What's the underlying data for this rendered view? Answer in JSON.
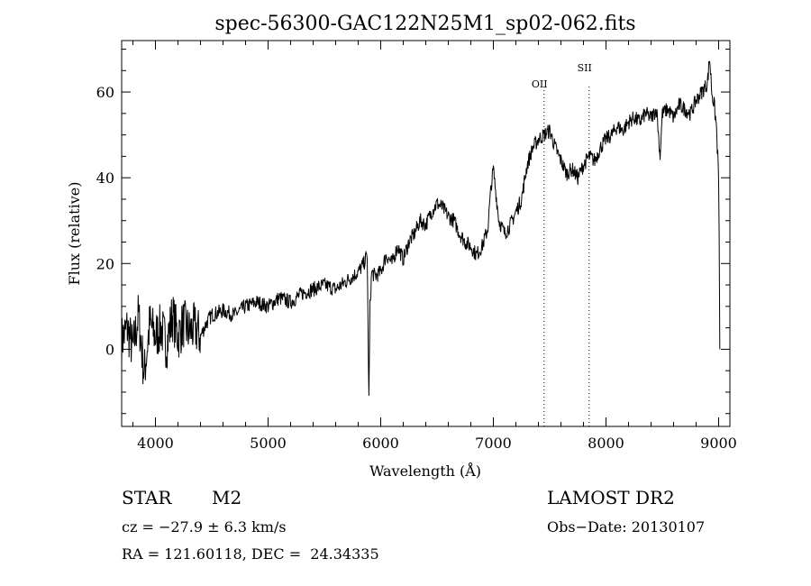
{
  "chart_data": {
    "type": "line",
    "title": "spec-56300-GAC122N25M1_sp02-062.fits",
    "xlabel": "Wavelength (Å)",
    "ylabel": "Flux (relative)",
    "xlim": [
      3700,
      9100
    ],
    "ylim": [
      -18,
      72
    ],
    "x_ticks": [
      4000,
      5000,
      6000,
      7000,
      8000,
      9000
    ],
    "y_ticks": [
      0,
      20,
      40,
      60
    ],
    "grid": false,
    "series": [
      {
        "x": [
          3700,
          3750,
          3800,
          3850,
          3900,
          3950,
          4000,
          4050,
          4100,
          4150,
          4200,
          4250,
          4300,
          4350,
          4400,
          4450,
          4500,
          4600,
          4700,
          4800,
          4900,
          5000,
          5100,
          5200,
          5300,
          5400,
          5500,
          5600,
          5700,
          5800,
          5850,
          5880,
          5895,
          5905,
          5920,
          5950,
          6000,
          6050,
          6100,
          6150,
          6200,
          6250,
          6300,
          6350,
          6400,
          6450,
          6500,
          6550,
          6600,
          6650,
          6700,
          6750,
          6800,
          6850,
          6900,
          6950,
          6980,
          7000,
          7020,
          7050,
          7100,
          7150,
          7200,
          7250,
          7300,
          7350,
          7400,
          7450,
          7500,
          7550,
          7600,
          7650,
          7700,
          7750,
          7800,
          7850,
          7900,
          7950,
          8000,
          8050,
          8100,
          8150,
          8200,
          8250,
          8300,
          8350,
          8400,
          8450,
          8480,
          8500,
          8550,
          8600,
          8650,
          8700,
          8750,
          8800,
          8850,
          8900,
          8920,
          8940,
          8960,
          8980,
          9000,
          9005,
          9010
        ],
        "y": [
          2,
          5,
          0,
          8,
          -6,
          6,
          3,
          5,
          1,
          8,
          3,
          6,
          4,
          5,
          3,
          6,
          8,
          9,
          8,
          10,
          11,
          10,
          12,
          11,
          13,
          14,
          15,
          14,
          16,
          18,
          20,
          22,
          -12,
          10,
          18,
          17,
          18,
          22,
          20,
          24,
          21,
          25,
          27,
          30,
          29,
          32,
          34,
          33,
          31,
          30,
          27,
          25,
          24,
          22,
          24,
          28,
          38,
          42,
          37,
          30,
          27,
          29,
          32,
          35,
          43,
          47,
          49,
          50,
          51,
          47,
          44,
          41,
          42,
          40,
          43,
          45,
          44,
          47,
          49,
          50,
          52,
          51,
          53,
          54,
          53,
          55,
          54,
          56,
          45,
          55,
          56,
          54,
          57,
          56,
          55,
          58,
          60,
          62,
          68,
          60,
          57,
          52,
          40,
          25,
          0
        ]
      }
    ],
    "annotations": [
      {
        "label": "OII",
        "x": 7450
      },
      {
        "label": "SII",
        "x": 7850
      }
    ]
  },
  "info": {
    "object_class": "STAR",
    "subclass": "M2",
    "survey": "LAMOST DR2",
    "cz": "cz = −27.9 ± 6.3 km/s",
    "obs_date": "Obs−Date: 20130107",
    "radec": "RA = 121.60118, DEC =  24.34335"
  }
}
